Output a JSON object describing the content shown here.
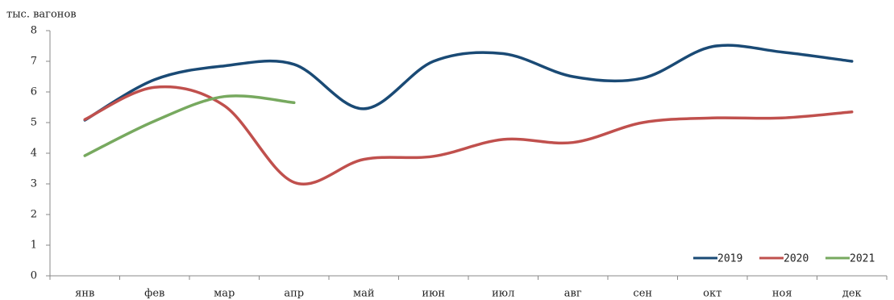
{
  "chart_data": {
    "type": "line",
    "y_label": "тыс. вагонов",
    "categories": [
      "янв",
      "фев",
      "мар",
      "апр",
      "май",
      "июн",
      "июл",
      "авг",
      "сен",
      "окт",
      "ноя",
      "дек"
    ],
    "series": [
      {
        "name": "2019",
        "color": "#1a4a75",
        "values": [
          5.08,
          6.4,
          6.85,
          6.9,
          5.45,
          7.0,
          7.25,
          6.5,
          6.45,
          7.48,
          7.3,
          7.0
        ]
      },
      {
        "name": "2020",
        "color": "#c0504d",
        "values": [
          5.1,
          6.15,
          5.55,
          3.05,
          3.8,
          3.9,
          4.45,
          4.35,
          5.0,
          5.15,
          5.15,
          5.35
        ]
      },
      {
        "name": "2021",
        "color": "#77a95f",
        "values": [
          3.92,
          5.05,
          5.85,
          5.65,
          null,
          null,
          null,
          null,
          null,
          null,
          null,
          null
        ]
      }
    ],
    "ylim": [
      0,
      8
    ],
    "yticks": [
      0,
      1,
      2,
      3,
      4,
      5,
      6,
      7,
      8
    ],
    "smooth": true,
    "legend": "bottom-right"
  }
}
